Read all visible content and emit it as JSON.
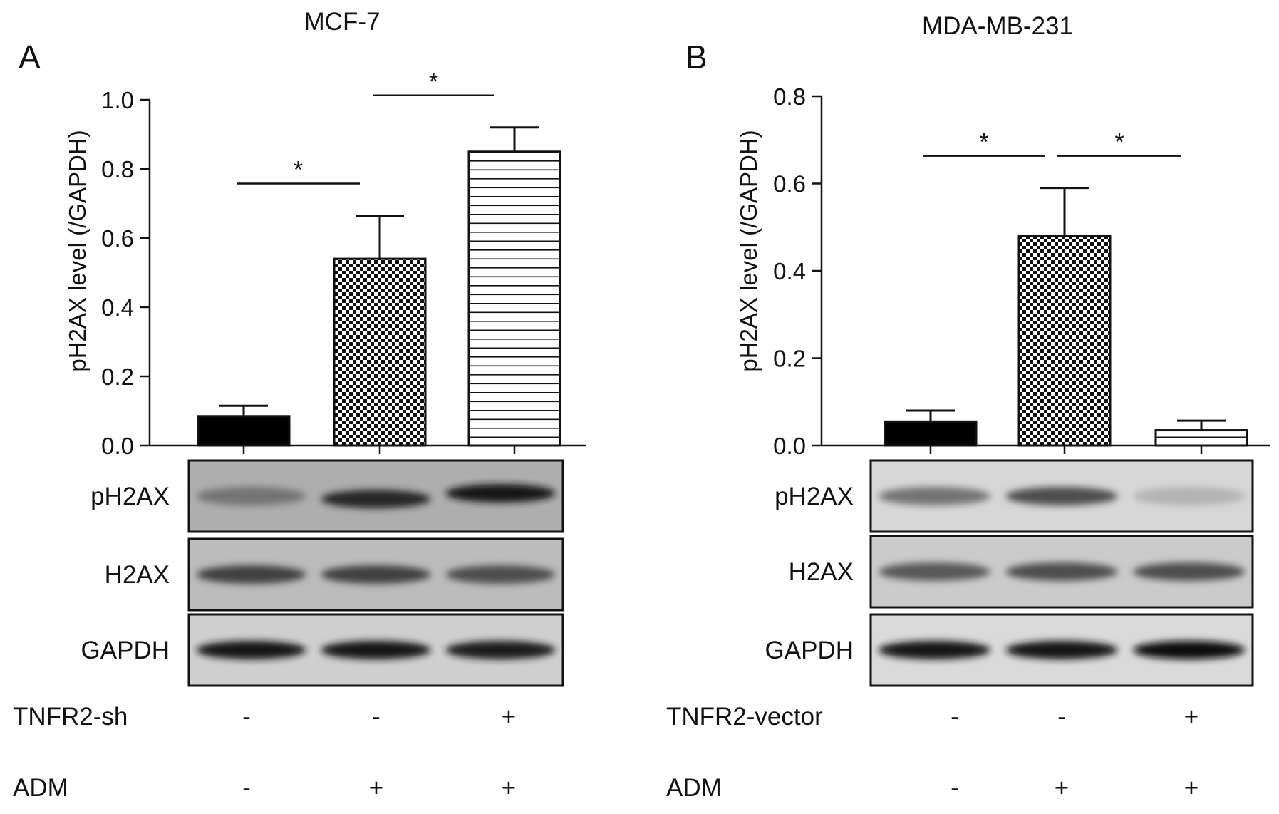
{
  "panels": [
    {
      "letter": "A",
      "title": "MCF-7",
      "ylabel": "pH2AX level (/GAPDH)",
      "treatment_rows": [
        {
          "label": "TNFR2-sh",
          "signs": [
            "-",
            "-",
            "+"
          ]
        },
        {
          "label": "ADM",
          "signs": [
            "-",
            "+",
            "+"
          ]
        }
      ],
      "blots": [
        {
          "label": "pH2AX",
          "band_intensity": [
            0.55,
            0.85,
            0.9
          ],
          "band_offset": [
            0,
            4,
            -4
          ],
          "bg": "#aeaeae"
        },
        {
          "label": "H2AX",
          "band_intensity": [
            0.75,
            0.75,
            0.7
          ],
          "band_offset": [
            0,
            0,
            0
          ],
          "bg": "#bcbcbc"
        },
        {
          "label": "GAPDH",
          "band_intensity": [
            0.9,
            0.9,
            0.88
          ],
          "band_offset": [
            0,
            0,
            0
          ],
          "bg": "#cfcfcf"
        }
      ]
    },
    {
      "letter": "B",
      "title": "MDA-MB-231",
      "ylabel": "pH2AX level (/GAPDH)",
      "treatment_rows": [
        {
          "label": "TNFR2-vector",
          "signs": [
            "-",
            "-",
            "+"
          ]
        },
        {
          "label": "ADM",
          "signs": [
            "-",
            "+",
            "+"
          ]
        }
      ],
      "blots": [
        {
          "label": "pH2AX",
          "band_intensity": [
            0.55,
            0.7,
            0.3
          ],
          "band_offset": [
            0,
            0,
            0
          ],
          "bg": "#d7d7d7"
        },
        {
          "label": "H2AX",
          "band_intensity": [
            0.65,
            0.7,
            0.7
          ],
          "band_offset": [
            0,
            0,
            0
          ],
          "bg": "#cbcbcb"
        },
        {
          "label": "GAPDH",
          "band_intensity": [
            0.92,
            0.9,
            0.95
          ],
          "band_offset": [
            0,
            0,
            0
          ],
          "bg": "#dadada"
        }
      ]
    }
  ],
  "chart_data": [
    {
      "type": "bar",
      "title": "MCF-7",
      "ylabel": "pH2AX level (/GAPDH)",
      "ylim": [
        0,
        1.0
      ],
      "yticks": [
        "0.0",
        "0.2",
        "0.4",
        "0.6",
        "0.8",
        "1.0"
      ],
      "series": [
        {
          "values": [
            0.085,
            0.54,
            0.85
          ],
          "errors": [
            0.03,
            0.125,
            0.07
          ],
          "patterns": [
            "solid",
            "checker",
            "hstripe"
          ]
        }
      ],
      "significance": [
        {
          "from": 0,
          "to": 1,
          "label": "*"
        },
        {
          "from": 1,
          "to": 2,
          "label": "*"
        }
      ]
    },
    {
      "type": "bar",
      "title": "MDA-MB-231",
      "ylabel": "pH2AX level (/GAPDH)",
      "ylim": [
        0,
        0.8
      ],
      "yticks": [
        "0.0",
        "0.2",
        "0.4",
        "0.6",
        "0.8"
      ],
      "series": [
        {
          "values": [
            0.055,
            0.48,
            0.035
          ],
          "errors": [
            0.025,
            0.11,
            0.022
          ],
          "patterns": [
            "solid",
            "checker",
            "hstripe"
          ]
        }
      ],
      "significance": [
        {
          "from": 0,
          "to": 1,
          "label": "*"
        },
        {
          "from": 1,
          "to": 2,
          "label": "*"
        }
      ]
    }
  ]
}
